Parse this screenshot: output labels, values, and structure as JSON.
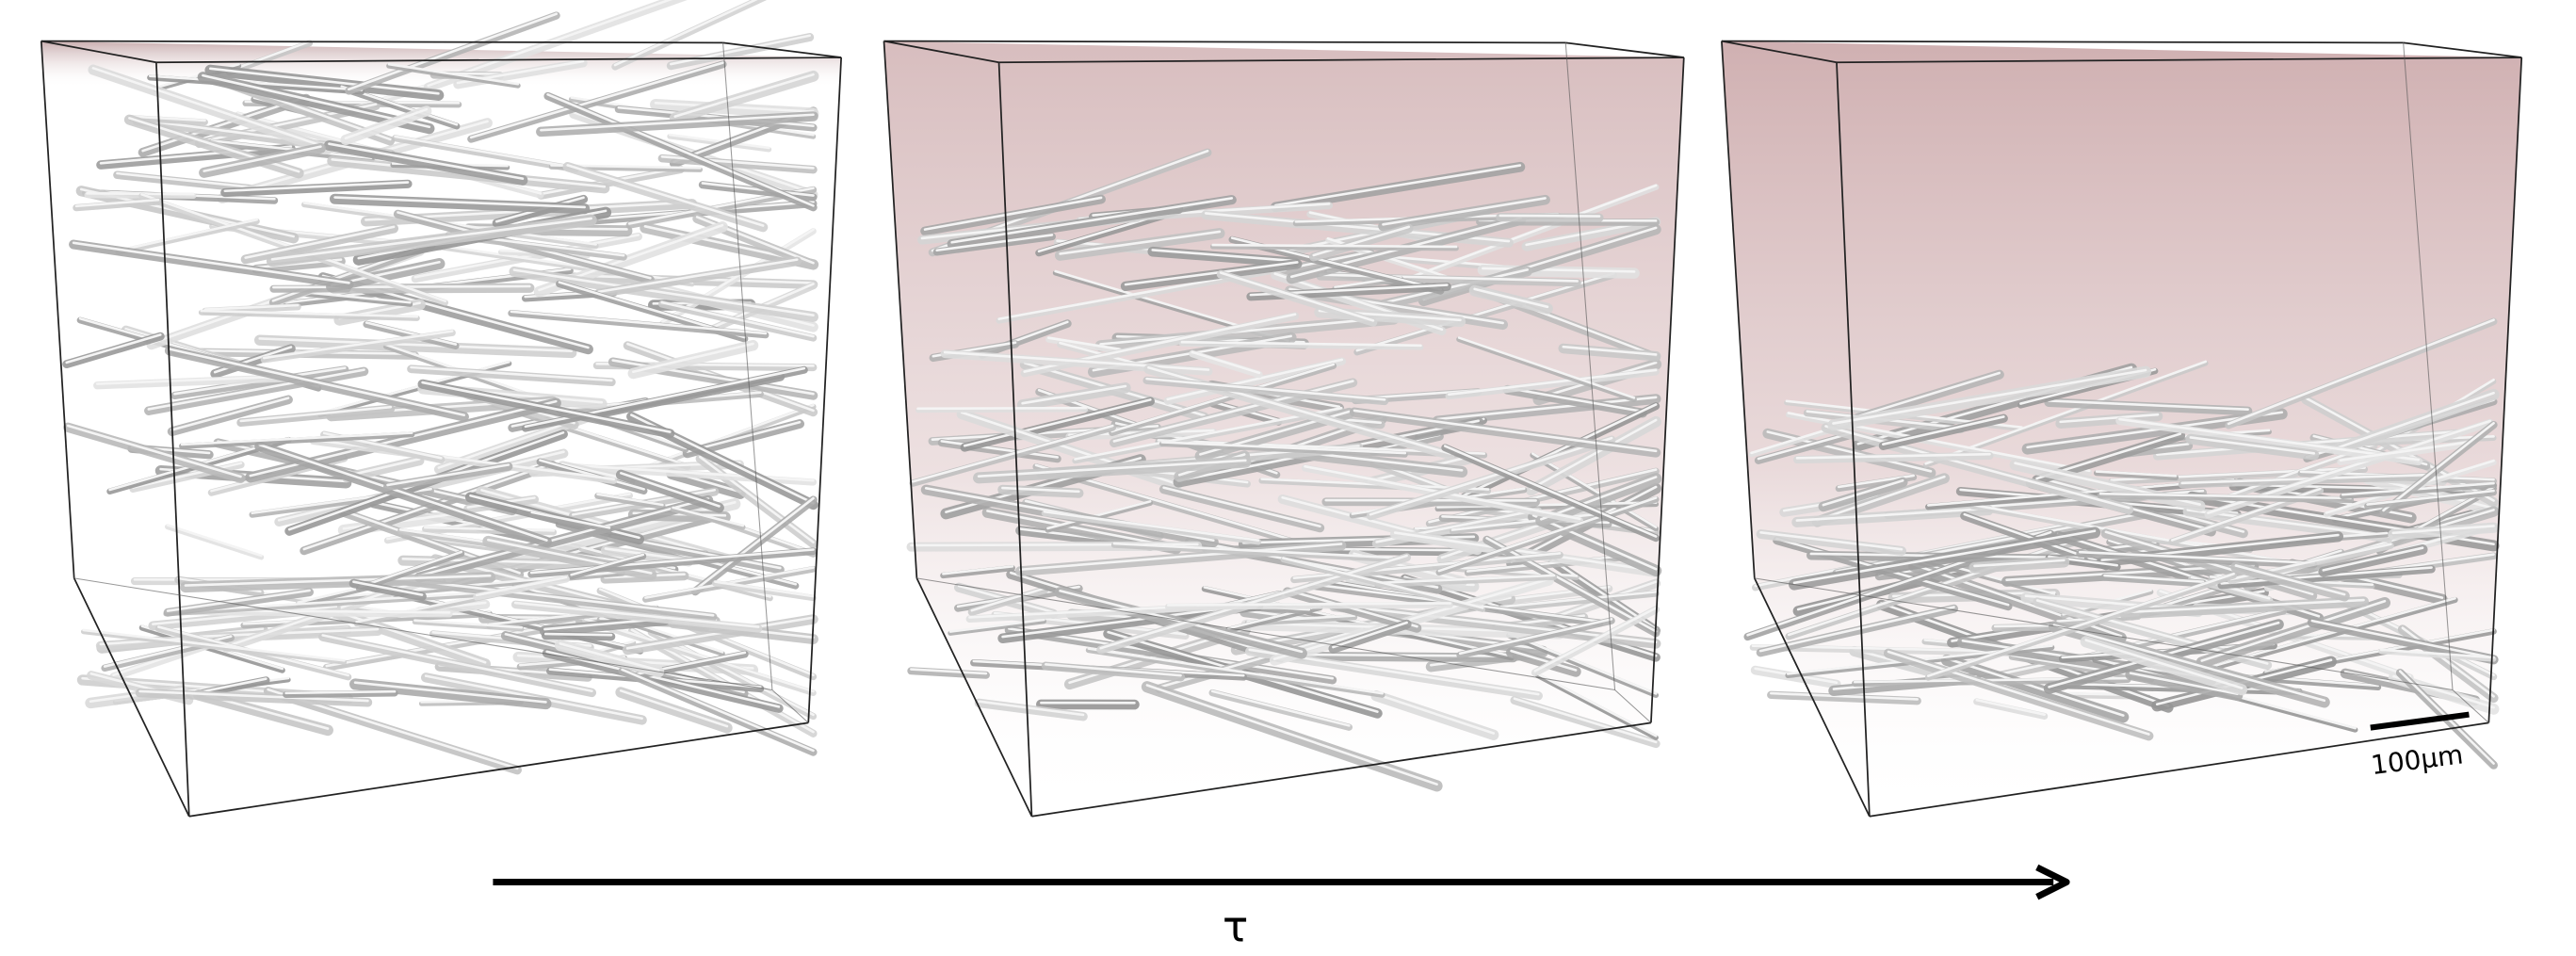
{
  "figure": {
    "arrow_label": "τ",
    "scale_bar_label": "100μm"
  }
}
